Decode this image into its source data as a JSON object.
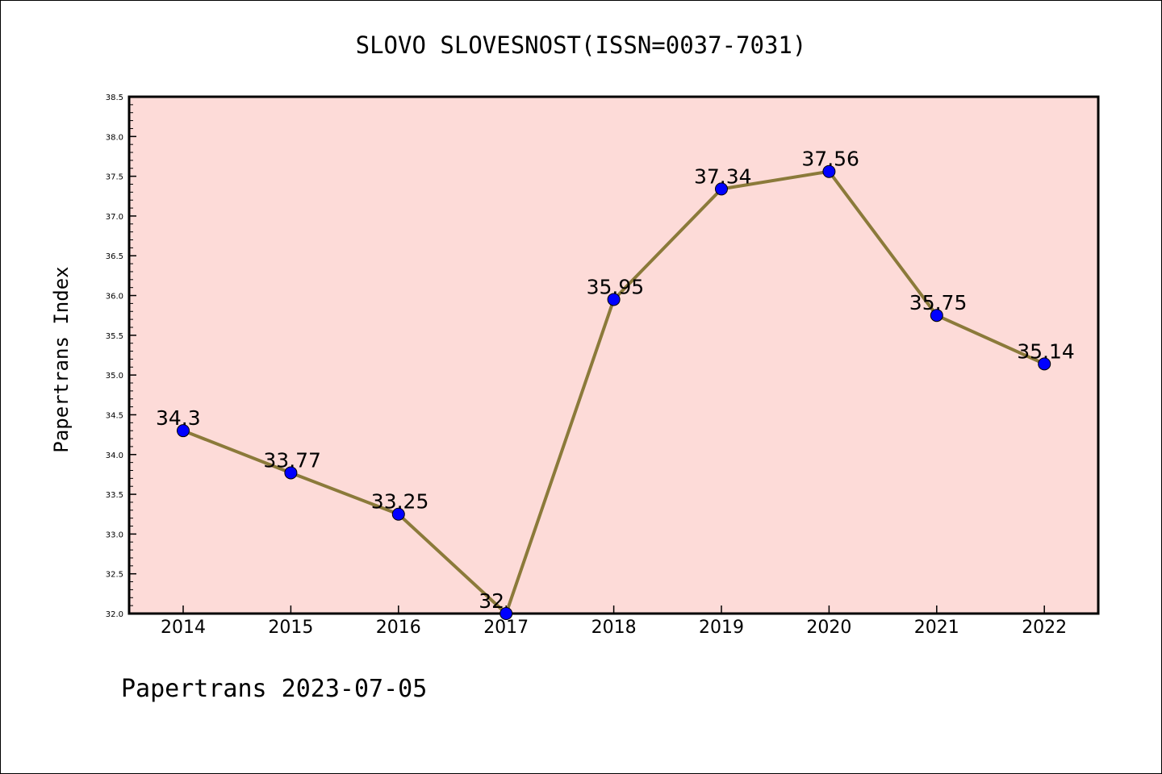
{
  "chart_data": {
    "type": "line",
    "title": "SLOVO SLOVESNOST(ISSN=0037-7031)",
    "ylabel": "Papertrans Index",
    "xlabel": "",
    "footer": "Papertrans 2023-07-05",
    "categories": [
      "2014",
      "2015",
      "2016",
      "2017",
      "2018",
      "2019",
      "2020",
      "2021",
      "2022"
    ],
    "values": [
      34.3,
      33.77,
      33.25,
      32,
      35.95,
      37.34,
      37.56,
      35.75,
      35.14
    ],
    "data_labels": [
      "34.3",
      "33.77",
      "33.25",
      "32",
      "35.95",
      "37.34",
      "37.56",
      "35.75",
      "35.14"
    ],
    "ylim": [
      32.0,
      38.5
    ],
    "yticks": [
      "32.0",
      "32.5",
      "33.0",
      "33.5",
      "34.0",
      "34.5",
      "35.0",
      "35.5",
      "36.0",
      "36.5",
      "37.0",
      "37.5",
      "38.0",
      "38.5"
    ],
    "grid": false,
    "colors": {
      "plot_background": "#fddbd8",
      "line": "#8b7a3a",
      "marker": "#0000ff",
      "axis": "#000000"
    }
  }
}
